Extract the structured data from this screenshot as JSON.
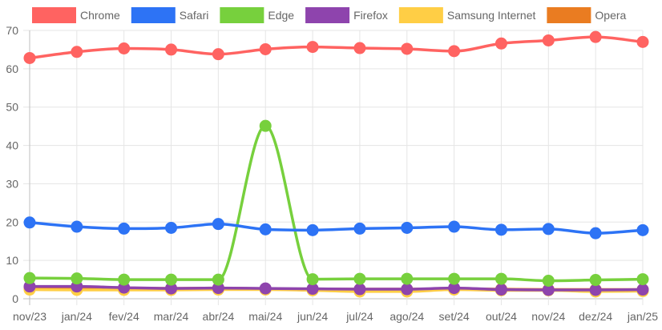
{
  "chart_data": {
    "type": "line",
    "categories": [
      "nov/23",
      "jan/24",
      "fev/24",
      "mar/24",
      "abr/24",
      "mai/24",
      "jun/24",
      "jul/24",
      "ago/24",
      "set/24",
      "out/24",
      "nov/24",
      "dez/24",
      "jan/25"
    ],
    "ylim": [
      0,
      70
    ],
    "yticks": [
      0,
      10,
      20,
      30,
      40,
      50,
      60,
      70
    ],
    "grid": true,
    "legend_position": "top",
    "series": [
      {
        "name": "Chrome",
        "color": "#ff6361",
        "values": [
          62.8,
          64.4,
          65.3,
          65.0,
          63.8,
          65.1,
          65.7,
          65.4,
          65.2,
          64.6,
          66.6,
          67.4,
          68.3,
          67.0
        ]
      },
      {
        "name": "Safari",
        "color": "#2d73f5",
        "values": [
          19.9,
          18.8,
          18.3,
          18.5,
          19.5,
          18.1,
          17.9,
          18.3,
          18.5,
          18.8,
          18.0,
          18.2,
          17.1,
          17.9
        ]
      },
      {
        "name": "Edge",
        "color": "#77d03d",
        "values": [
          5.4,
          5.3,
          5.0,
          5.0,
          5.0,
          45.1,
          5.1,
          5.2,
          5.2,
          5.2,
          5.2,
          4.7,
          4.9,
          5.1
        ]
      },
      {
        "name": "Firefox",
        "color": "#8e44ad",
        "values": [
          3.2,
          3.2,
          2.9,
          2.7,
          2.8,
          2.7,
          2.6,
          2.5,
          2.5,
          2.8,
          2.4,
          2.3,
          2.3,
          2.4
        ]
      },
      {
        "name": "Samsung Internet",
        "color": "#ffce45",
        "values": [
          2.4,
          2.3,
          2.3,
          2.3,
          2.4,
          2.4,
          2.2,
          1.9,
          1.9,
          2.4,
          2.2,
          2.2,
          1.9,
          2.0
        ]
      },
      {
        "name": "Opera",
        "color": "#ea7c21",
        "values": [
          2.8,
          2.9,
          2.8,
          2.7,
          2.8,
          2.6,
          2.5,
          2.5,
          2.5,
          2.6,
          2.5,
          2.4,
          2.4,
          2.4
        ]
      }
    ]
  }
}
